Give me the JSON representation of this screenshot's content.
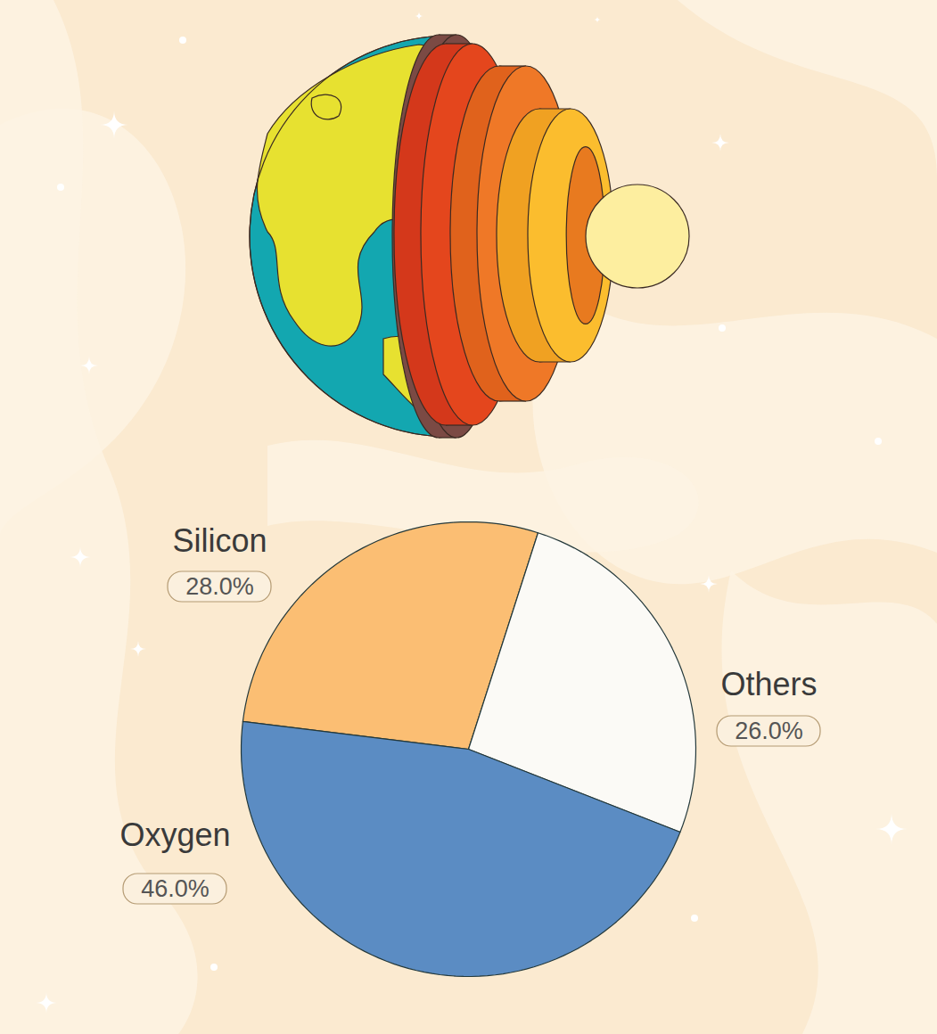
{
  "chart_data": {
    "type": "pie",
    "categories": [
      "Silicon",
      "Others",
      "Oxygen"
    ],
    "values": [
      28.0,
      26.0,
      46.0
    ],
    "value_labels": [
      "28.0%",
      "26.0%",
      "46.0%"
    ],
    "colors": [
      "#fbbe73",
      "#fbfaf6",
      "#5b8cc3"
    ],
    "data_labels": true
  }
}
